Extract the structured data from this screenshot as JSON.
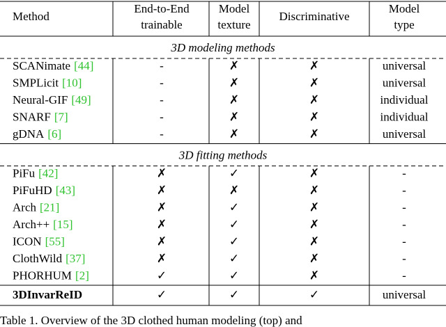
{
  "table": {
    "header": [
      [
        "Method"
      ],
      [
        "End-to-End",
        "trainable"
      ],
      [
        "Model",
        "texture"
      ],
      [
        "Discriminative"
      ],
      [
        "Model",
        "type"
      ]
    ],
    "sections": [
      {
        "title": "3D modeling methods",
        "rows": [
          {
            "method": "SCANimate",
            "ref": "[44]",
            "cells": [
              "-",
              "✗",
              "✗",
              "universal"
            ]
          },
          {
            "method": "SMPLicit",
            "ref": "[10]",
            "cells": [
              "-",
              "✗",
              "✗",
              "universal"
            ]
          },
          {
            "method": "Neural-GIF",
            "ref": "[49]",
            "cells": [
              "-",
              "✗",
              "✗",
              "individual"
            ]
          },
          {
            "method": "SNARF",
            "ref": "[7]",
            "cells": [
              "-",
              "✗",
              "✗",
              "individual"
            ]
          },
          {
            "method": "gDNA",
            "ref": "[6]",
            "cells": [
              "-",
              "✗",
              "✗",
              "universal"
            ]
          }
        ]
      },
      {
        "title": "3D fitting methods",
        "rows": [
          {
            "method": "PiFu",
            "ref": "[42]",
            "cells": [
              "✗",
              "✓",
              "✗",
              "-"
            ]
          },
          {
            "method": "PiFuHD",
            "ref": "[43]",
            "cells": [
              "✗",
              "✗",
              "✗",
              "-"
            ]
          },
          {
            "method": "Arch",
            "ref": "[21]",
            "cells": [
              "✗",
              "✓",
              "✗",
              "-"
            ]
          },
          {
            "method": "Arch++",
            "ref": "[15]",
            "cells": [
              "✗",
              "✓",
              "✗",
              "-"
            ]
          },
          {
            "method": "ICON",
            "ref": "[55]",
            "cells": [
              "✗",
              "✓",
              "✗",
              "-"
            ]
          },
          {
            "method": "ClothWild",
            "ref": "[37]",
            "cells": [
              "✗",
              "✓",
              "✗",
              "-"
            ]
          },
          {
            "method": "PHORHUM",
            "ref": "[2]",
            "cells": [
              "✓",
              "✓",
              "✗",
              "-"
            ]
          }
        ]
      }
    ],
    "final_row": {
      "method": "3DInvarReID",
      "cells": [
        "✓",
        "✓",
        "✓",
        "universal"
      ]
    },
    "symbol_colors": {
      "✗": "#e8241f",
      "✓": "#2fc22f"
    }
  },
  "caption": "Table 1. Overview of the 3D clothed human modeling (top) and"
}
